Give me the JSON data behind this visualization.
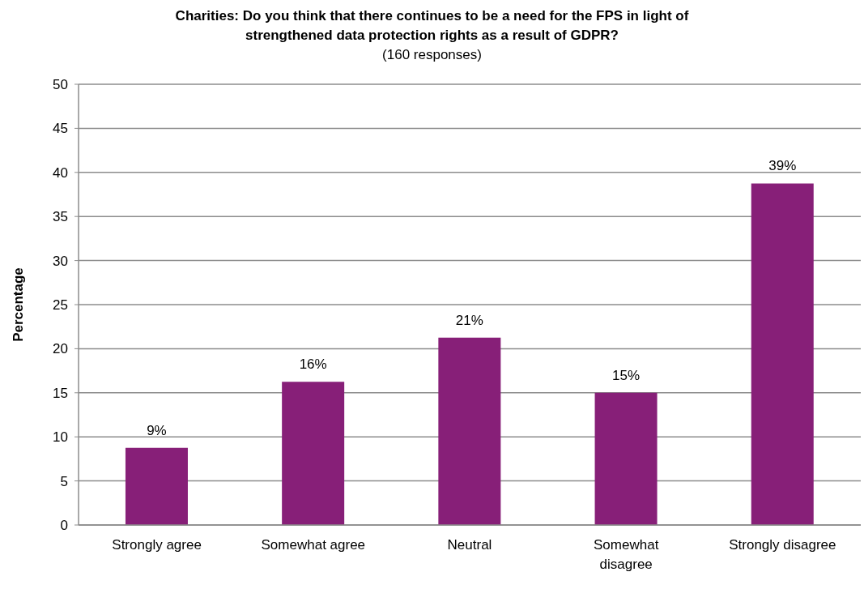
{
  "chart_data": {
    "type": "bar",
    "title": "Charities: Do you think that there continues to be a need for the FPS in light of strengthened data protection rights as a result of GDPR?",
    "subtitle": "(160 responses)",
    "ylabel": "Percentage",
    "categories": [
      "Strongly agree",
      "Somewhat agree",
      "Neutral",
      "Somewhat disagree",
      "Strongly disagree"
    ],
    "values": [
      8.75,
      16.25,
      21.25,
      15,
      38.75
    ],
    "color": "#871f78",
    "value_labels": [
      "9%",
      "16%",
      "21%",
      "15%",
      "39%"
    ],
    "ylim": [
      0,
      50
    ],
    "yticks": [
      0,
      5,
      10,
      15,
      20,
      25,
      30,
      35,
      40,
      45,
      50
    ],
    "grid": "y"
  }
}
